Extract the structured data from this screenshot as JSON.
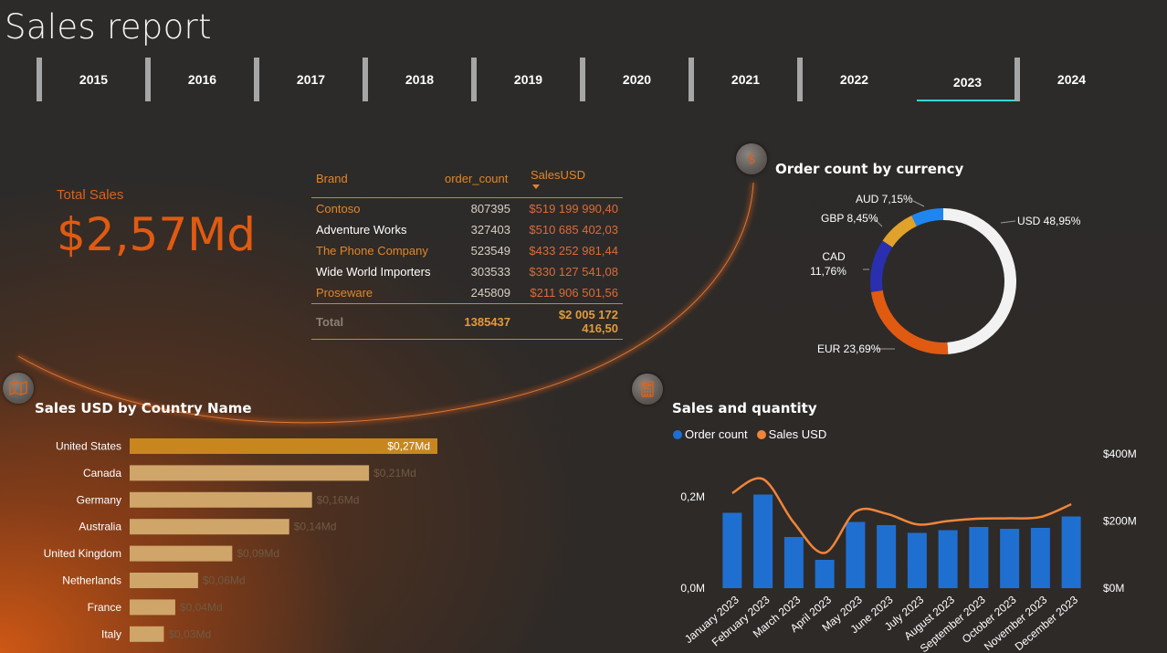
{
  "report": {
    "title": "Sales report"
  },
  "years": {
    "items": [
      "2015",
      "2016",
      "2017",
      "2018",
      "2019",
      "2020",
      "2021",
      "2022",
      "2023",
      "2024"
    ],
    "selected": "2023"
  },
  "kpi": {
    "label": "Total Sales",
    "value": "$2,57Md"
  },
  "brand_table": {
    "headers": {
      "brand": "Brand",
      "order_count": "order_count",
      "sales": "SalesUSD"
    },
    "rows": [
      {
        "brand": "Contoso",
        "order_count": "807395",
        "sales": "$519 199 990,40"
      },
      {
        "brand": "Adventure Works",
        "order_count": "327403",
        "sales": "$510 685 402,03"
      },
      {
        "brand": "The Phone Company",
        "order_count": "523549",
        "sales": "$433 252 981,44"
      },
      {
        "brand": "Wide World Importers",
        "order_count": "303533",
        "sales": "$330 127 541,08"
      },
      {
        "brand": "Proseware",
        "order_count": "245809",
        "sales": "$211 906 501,56"
      }
    ],
    "total": {
      "label": "Total",
      "order_count": "1385437",
      "sales": "$2 005 172 416,50"
    }
  },
  "icons": {
    "currency": "dollar-icon",
    "map": "map-icon",
    "calculator": "calculator-icon"
  },
  "chart_data": [
    {
      "type": "pie",
      "title": "Order count by currency",
      "donut": true,
      "slices": [
        {
          "label": "USD",
          "value": 48.95,
          "display": "USD 48,95%",
          "color": "#f2f2f2"
        },
        {
          "label": "EUR",
          "value": 23.69,
          "display": "EUR 23,69%",
          "color": "#e05a12"
        },
        {
          "label": "CAD",
          "value": 11.76,
          "display_line1": "CAD",
          "display_line2": "11,76%",
          "color": "#2a2fb0"
        },
        {
          "label": "GBP",
          "value": 8.45,
          "display": "GBP 8,45%",
          "color": "#e0a22a"
        },
        {
          "label": "AUD",
          "value": 7.15,
          "display": "AUD 7,15%",
          "color": "#1f86f0"
        }
      ]
    },
    {
      "type": "bar",
      "orientation": "horizontal",
      "title": "Sales USD by Country Name",
      "categories": [
        "United States",
        "Canada",
        "Germany",
        "Australia",
        "United Kingdom",
        "Netherlands",
        "France",
        "Italy"
      ],
      "values": [
        0.27,
        0.21,
        0.16,
        0.14,
        0.09,
        0.06,
        0.04,
        0.03
      ],
      "labels": [
        "$0,27Md",
        "$0,21Md",
        "$0,16Md",
        "$0,14Md",
        "$0,09Md",
        "$0,06Md",
        "$0,04Md",
        "$0,03Md"
      ],
      "color": "#cfa56a",
      "highlight_color": "#c8861f",
      "xlim": [
        0,
        0.27
      ]
    },
    {
      "type": "bar",
      "title": "Sales and quantity",
      "categories": [
        "January 2023",
        "February 2023",
        "March 2023",
        "April 2023",
        "May 2023",
        "June 2023",
        "July 2023",
        "August 2023",
        "September 2023",
        "October 2023",
        "November 2023",
        "December 2023"
      ],
      "series": [
        {
          "name": "Order count",
          "type": "bar",
          "axis": "left",
          "color": "#1f6fd1",
          "values": [
            0.165,
            0.205,
            0.112,
            0.062,
            0.145,
            0.138,
            0.121,
            0.127,
            0.134,
            0.13,
            0.132,
            0.157
          ]
        },
        {
          "name": "Sales USD",
          "type": "line",
          "axis": "right",
          "color": "#f0853a",
          "values": [
            283,
            325,
            195,
            105,
            228,
            222,
            190,
            200,
            207,
            208,
            212,
            250
          ]
        }
      ],
      "left_axis": {
        "ticks": [
          "0,0M",
          "0,2M"
        ],
        "tick_values": [
          0,
          0.2
        ],
        "ylim": [
          0,
          0.25
        ]
      },
      "right_axis": {
        "ticks": [
          "$0M",
          "$200M",
          "$400M"
        ],
        "tick_values": [
          0,
          200,
          400
        ],
        "ylim": [
          0,
          400
        ]
      }
    }
  ]
}
